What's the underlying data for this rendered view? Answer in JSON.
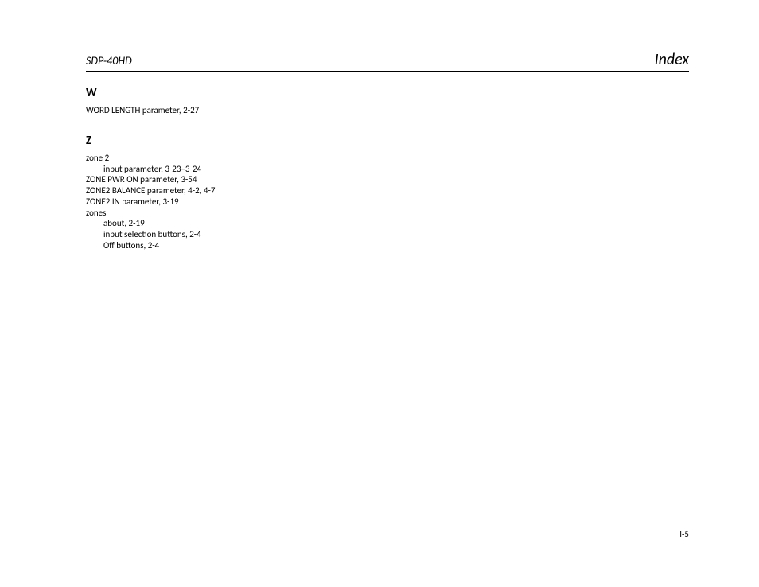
{
  "header": {
    "model": "SDP-40HD",
    "section": "Index"
  },
  "groups": [
    {
      "letter": "W",
      "entries": [
        {
          "text": "WORD LENGTH parameter, 2-27",
          "indent": 0
        }
      ]
    },
    {
      "letter": "Z",
      "entries": [
        {
          "text": "zone 2",
          "indent": 0
        },
        {
          "text": "input parameter, 3-23–3-24",
          "indent": 1
        },
        {
          "text": "ZONE PWR ON parameter, 3-54",
          "indent": 0
        },
        {
          "text": "ZONE2 BALANCE parameter, 4-2, 4-7",
          "indent": 0
        },
        {
          "text": "ZONE2 IN parameter, 3-19",
          "indent": 0
        },
        {
          "text": "zones",
          "indent": 0
        },
        {
          "text": "about, 2-19",
          "indent": 1
        },
        {
          "text": "input selection buttons, 2-4",
          "indent": 1
        },
        {
          "text": "Off buttons, 2-4",
          "indent": 1
        }
      ]
    }
  ],
  "footer": {
    "page_number": "I-5"
  }
}
